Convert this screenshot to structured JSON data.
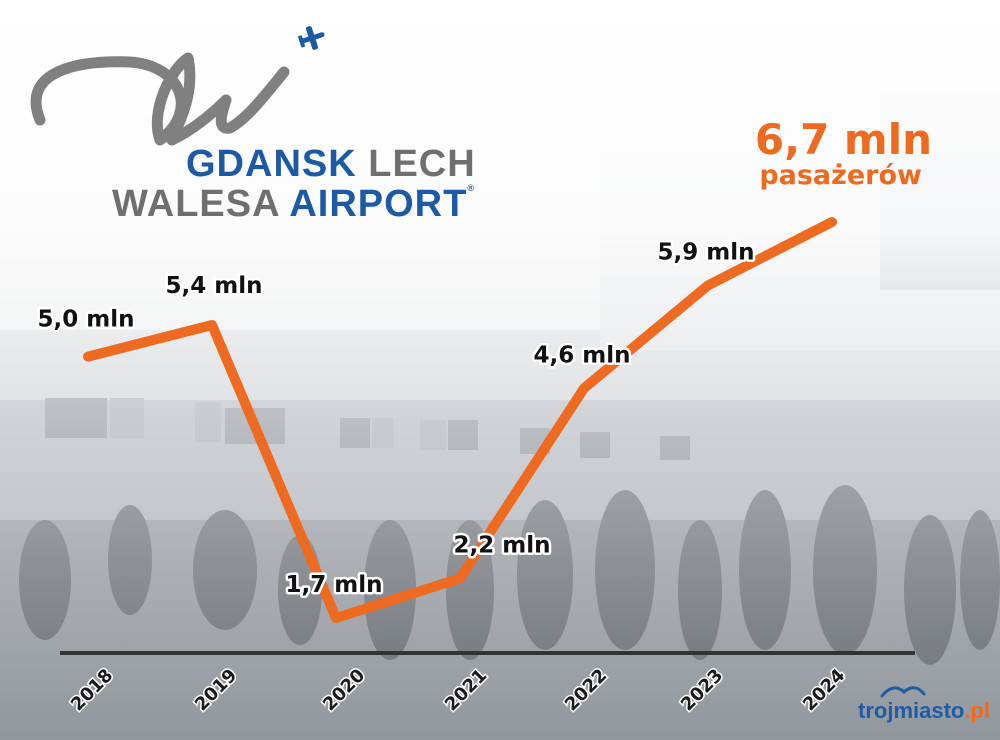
{
  "logo": {
    "line1_a": "GDANSK",
    "line1_b": "LECH",
    "line2_a": "WALESA",
    "line2_b": "AIRPORT",
    "reg_mark": "®"
  },
  "headline": {
    "total_value": "6,7 mln",
    "total_label": "pasażerów"
  },
  "source": {
    "name": "trojmiasto",
    "tld": ".pl"
  },
  "colors": {
    "line": "#ee6a20",
    "brand_blue": "#1c5aa6",
    "baseline": "#333333"
  },
  "chart_data": {
    "type": "line",
    "categories": [
      "2018",
      "2019",
      "2020",
      "2021",
      "2022",
      "2023",
      "2024"
    ],
    "values": [
      5.0,
      5.4,
      1.7,
      2.2,
      4.6,
      5.9,
      6.7
    ],
    "point_labels": [
      "5,0 mln",
      "5,4 mln",
      "1,7 mln",
      "2,2 mln",
      "4,6 mln",
      "5,9 mln",
      ""
    ],
    "ylim": [
      1.7,
      6.7
    ],
    "grid": false,
    "legend": "none"
  }
}
